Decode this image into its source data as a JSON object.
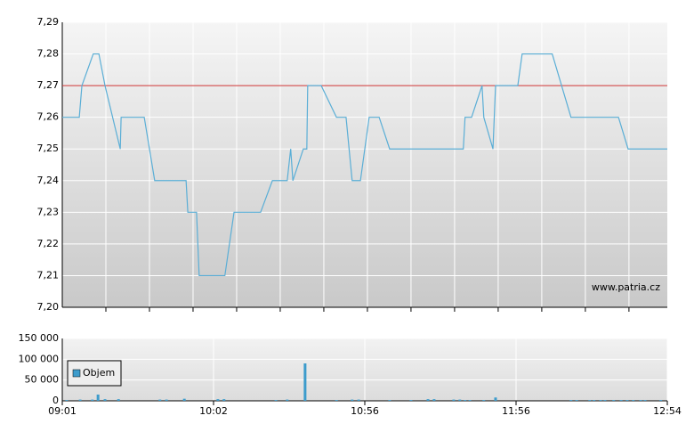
{
  "chart_data": [
    {
      "type": "line",
      "xlim": [
        0,
        13.88
      ],
      "ylim": [
        7.2,
        7.29
      ],
      "xticks": [
        {
          "value": 1,
          "label": null
        },
        {
          "value": 2,
          "label": null
        },
        {
          "value": 3,
          "label": null
        },
        {
          "value": 4,
          "label": null
        },
        {
          "value": 5,
          "label": null
        },
        {
          "value": 6,
          "label": null
        },
        {
          "value": 7,
          "label": null
        },
        {
          "value": 8,
          "label": null
        },
        {
          "value": 9,
          "label": null
        },
        {
          "value": 10,
          "label": null
        },
        {
          "value": 11,
          "label": null
        },
        {
          "value": 12,
          "label": null
        },
        {
          "value": 13,
          "label": null
        }
      ],
      "yticks": [
        {
          "value": 7.2,
          "label": "7,20"
        },
        {
          "value": 7.21,
          "label": "7,21"
        },
        {
          "value": 7.22,
          "label": "7,22"
        },
        {
          "value": 7.23,
          "label": "7,23"
        },
        {
          "value": 7.24,
          "label": "7,24"
        },
        {
          "value": 7.25,
          "label": "7,25"
        },
        {
          "value": 7.26,
          "label": "7,26"
        },
        {
          "value": 7.27,
          "label": "7,27"
        },
        {
          "value": 7.28,
          "label": "7,28"
        },
        {
          "value": 7.29,
          "label": "7,29"
        }
      ],
      "grid": true,
      "annotation": "www.patria.cz",
      "reference_line": {
        "value": 7.27,
        "color": "#cc3333"
      },
      "x": [
        0,
        0.39,
        0.45,
        0.71,
        0.84,
        0.98,
        1.33,
        1.35,
        1.88,
        2.12,
        2.84,
        2.88,
        3.08,
        3.14,
        3.73,
        3.94,
        4.55,
        4.82,
        5.16,
        5.24,
        5.29,
        5.53,
        5.61,
        5.63,
        5.94,
        6.29,
        6.51,
        6.65,
        6.84,
        7.04,
        7.27,
        7.51,
        9.2,
        9.24,
        9.39,
        9.63,
        9.67,
        9.88,
        9.94,
        10.45,
        10.55,
        11.24,
        11.67,
        12.76,
        12.98,
        13.88
      ],
      "series": [
        {
          "color": "#5aaed6",
          "values": [
            7.26,
            7.26,
            7.27,
            7.28,
            7.28,
            7.27,
            7.25,
            7.26,
            7.26,
            7.24,
            7.24,
            7.23,
            7.23,
            7.21,
            7.21,
            7.23,
            7.23,
            7.24,
            7.24,
            7.25,
            7.24,
            7.25,
            7.25,
            7.27,
            7.27,
            7.26,
            7.26,
            7.24,
            7.24,
            7.26,
            7.26,
            7.25,
            7.25,
            7.26,
            7.26,
            7.27,
            7.26,
            7.25,
            7.27,
            7.27,
            7.28,
            7.28,
            7.26,
            7.26,
            7.25,
            7.25
          ]
        }
      ]
    },
    {
      "type": "bar",
      "xlim": [
        0,
        13.88
      ],
      "ylim": [
        0,
        150000
      ],
      "xticks": [
        {
          "value": 0,
          "label": "09:01"
        },
        {
          "value": 3.47,
          "label": "10:02"
        },
        {
          "value": 6.94,
          "label": "10:56"
        },
        {
          "value": 10.41,
          "label": "11:56"
        },
        {
          "value": 13.88,
          "label": "12:54"
        }
      ],
      "yticks": [
        0,
        {
          "value": 50000,
          "label": "50 000"
        },
        {
          "value": 100000,
          "label": "100 000"
        },
        {
          "value": 150000,
          "label": "150 000"
        }
      ],
      "grid": true,
      "legend": "upper left",
      "x": [
        0.1,
        0.41,
        0.69,
        0.82,
        0.98,
        1.29,
        2.24,
        2.39,
        2.8,
        3.57,
        3.71,
        4.9,
        5.16,
        5.57,
        6.29,
        6.65,
        6.8,
        7.51,
        8,
        8.39,
        8.53,
        8.98,
        9.12,
        9.24,
        9.35,
        9.67,
        9.94,
        11.67,
        11.8,
        12.1,
        12.2,
        12.35,
        12.45,
        12.65,
        12.82,
        12.96,
        13.1,
        13.27,
        13.37,
        13.73
      ],
      "series": [
        {
          "name": "Objem",
          "color": "#3d9ccc",
          "values": [
            2000,
            3000,
            3000,
            15000,
            4000,
            4000,
            3000,
            3000,
            5000,
            4000,
            4000,
            2000,
            3000,
            90000,
            2000,
            3000,
            3000,
            2000,
            2000,
            4000,
            4000,
            3000,
            3000,
            2000,
            2000,
            2000,
            8000,
            2000,
            2000,
            2000,
            2000,
            2000,
            2000,
            2000,
            2000,
            2000,
            2000,
            2000,
            2000,
            2000
          ]
        }
      ]
    }
  ]
}
